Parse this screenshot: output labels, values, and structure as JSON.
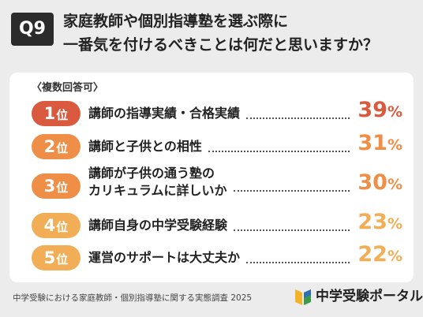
{
  "header": {
    "badge": "Q9",
    "title_line1": "家庭教師や個別指導塾を選ぶ際に",
    "title_line2": "一番気を付けるべきことは何だと思いますか？"
  },
  "note": "〈複数回答可〉",
  "rank_unit": "位",
  "percent_sign": "%",
  "chart_data": {
    "type": "bar",
    "title": "家庭教師や個別指導塾を選ぶ際に一番気を付けるべきことは何だと思いますか？",
    "subtitle": "〈複数回答可〉",
    "categories": [
      "講師の指導実績・合格実績",
      "講師と子供との相性",
      "講師が子供の通う塾のカリキュラムに詳しいか",
      "講師自身の中学受験経験",
      "運営のサポートは大丈夫か"
    ],
    "ranks": [
      1,
      2,
      3,
      4,
      5
    ],
    "values": [
      39,
      31,
      30,
      23,
      22
    ],
    "unit": "%",
    "colors": [
      "#d95a3f",
      "#ef8f47",
      "#ef8f47",
      "#f1ae57",
      "#f1ae57"
    ]
  },
  "items": [
    {
      "rank": "1",
      "label_lines": [
        "講師の指導実績・合格実績"
      ],
      "value": "39",
      "color": "#d95a3f"
    },
    {
      "rank": "2",
      "label_lines": [
        "講師と子供との相性"
      ],
      "value": "31",
      "color": "#ef8f47"
    },
    {
      "rank": "3",
      "label_lines": [
        "講師が子供の通う塾の",
        "カリキュラムに詳しいか"
      ],
      "value": "30",
      "color": "#ef8f47"
    },
    {
      "rank": "4",
      "label_lines": [
        "講師自身の中学受験経験"
      ],
      "value": "23",
      "color": "#f1ae57"
    },
    {
      "rank": "5",
      "label_lines": [
        "運営のサポートは大丈夫か"
      ],
      "value": "22",
      "color": "#f1ae57"
    }
  ],
  "footer": {
    "source": "中学受験における家庭教師・個別指導塾に関する実態調査 2025",
    "logo_text": "中学受験ポータル",
    "logo_colors": [
      "#f2b32a",
      "#3a9b4a",
      "#2f6db5"
    ]
  }
}
